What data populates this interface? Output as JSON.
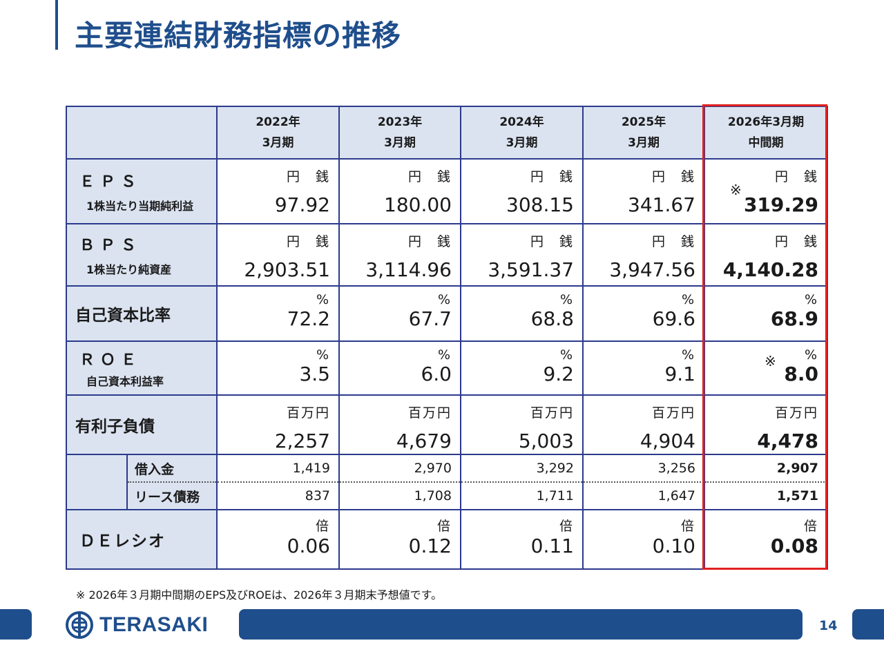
{
  "title": "主要連結財務指標の推移",
  "columns": [
    {
      "line1": "2022年",
      "line2": "3月期"
    },
    {
      "line1": "2023年",
      "line2": "3月期"
    },
    {
      "line1": "2024年",
      "line2": "3月期"
    },
    {
      "line1": "2025年",
      "line2": "3月期"
    },
    {
      "line1": "2026年3月期",
      "line2": "中間期"
    }
  ],
  "rows": {
    "eps": {
      "label": "ＥＰＳ",
      "sub": "1株当たり当期純利益",
      "unit": "円　銭",
      "values": [
        "97.92",
        "180.00",
        "308.15",
        "341.67",
        "319.29"
      ],
      "mark": "※"
    },
    "bps": {
      "label": "ＢＰＳ",
      "sub": "1株当たり純資産",
      "unit": "円　銭",
      "values": [
        "2,903.51",
        "3,114.96",
        "3,591.37",
        "3,947.56",
        "4,140.28"
      ]
    },
    "equity_ratio": {
      "label": "自己資本比率",
      "unit": "%",
      "values": [
        "72.2",
        "67.7",
        "68.8",
        "69.6",
        "68.9"
      ]
    },
    "roe": {
      "label": "ＲＯＥ",
      "sub": "自己資本利益率",
      "unit": "%",
      "values": [
        "3.5",
        "6.0",
        "9.2",
        "9.1",
        "8.0"
      ],
      "mark": "※"
    },
    "debt": {
      "label": "有利子負債",
      "unit": "百万円",
      "values": [
        "2,257",
        "4,679",
        "5,003",
        "4,904",
        "4,478"
      ]
    },
    "borrowings": {
      "label": "借入金",
      "values": [
        "1,419",
        "2,970",
        "3,292",
        "3,256",
        "2,907"
      ]
    },
    "lease": {
      "label": "リース債務",
      "values": [
        "837",
        "1,708",
        "1,711",
        "1,647",
        "1,571"
      ]
    },
    "de_ratio": {
      "label": "ＤＥレシオ",
      "unit": "倍",
      "values": [
        "0.06",
        "0.12",
        "0.11",
        "0.10",
        "0.08"
      ]
    }
  },
  "note": "※ 2026年３月期中間期のEPS及びROEは、2026年３月期末予想値です。",
  "logo_text": "TERASAKI",
  "page_number": "14",
  "colors": {
    "brand": "#1f4e8c",
    "highlight": "#e0201f",
    "header_bg": "#dbe3f0"
  }
}
